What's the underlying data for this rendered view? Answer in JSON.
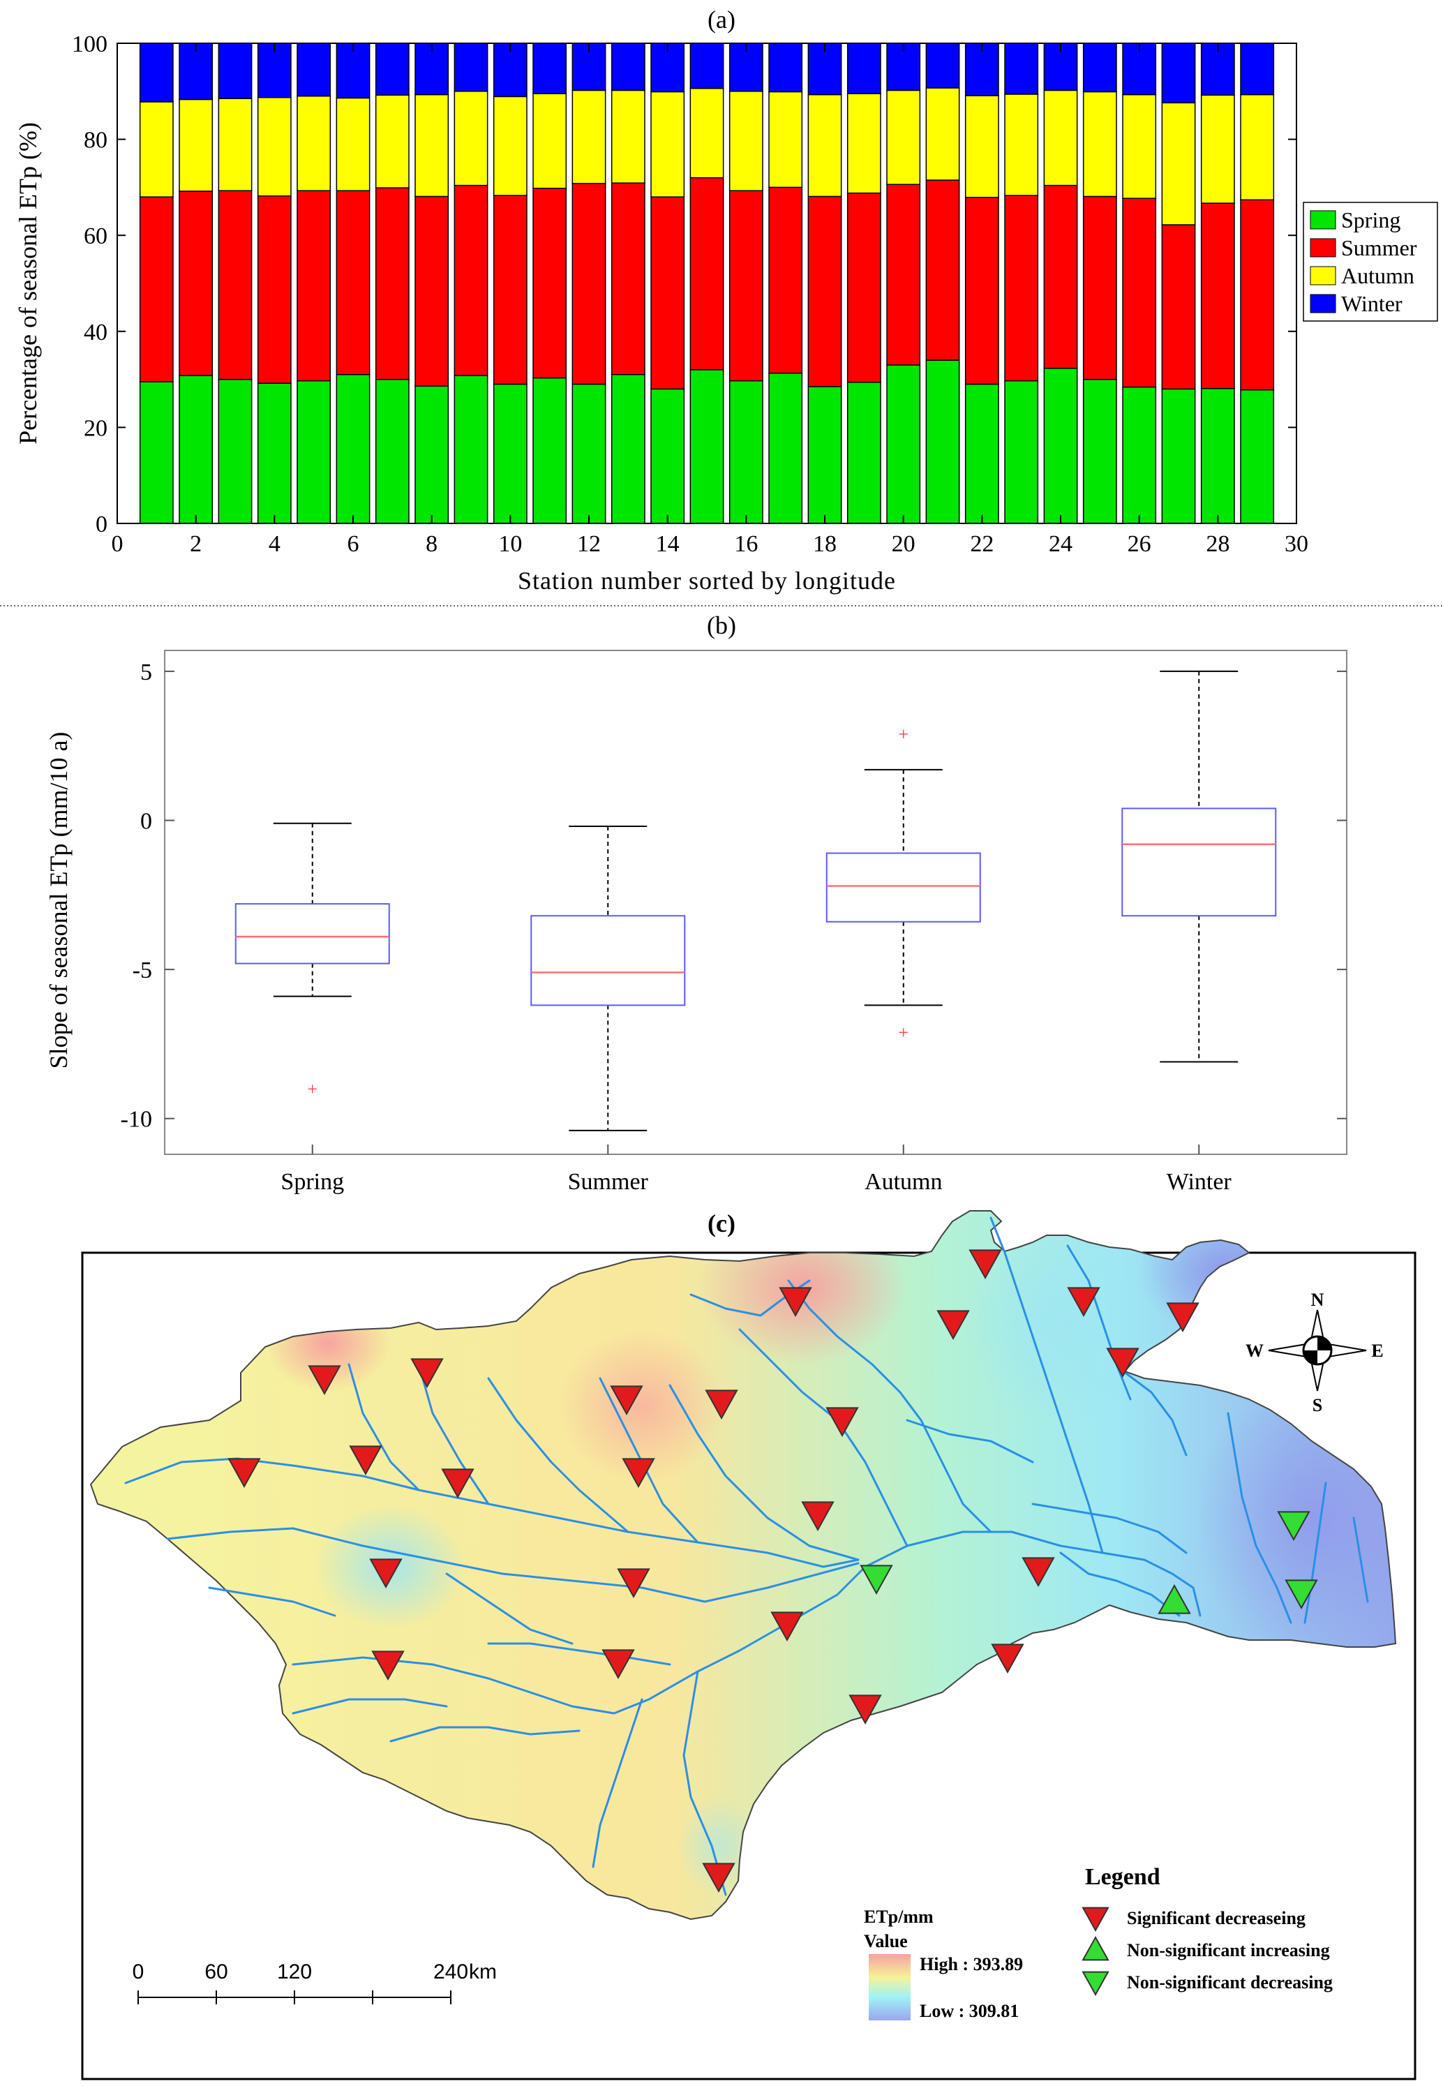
{
  "panel_a": {
    "label": "(a)",
    "chart_data": {
      "type": "bar",
      "stacked": true,
      "title": "(a)",
      "xlabel": "Station number sorted by longitude",
      "ylabel": "Percentage of seasonal ETp (%)",
      "xlim": [
        0,
        30
      ],
      "ylim": [
        0,
        100
      ],
      "xticks": [
        0,
        2,
        4,
        6,
        8,
        10,
        12,
        14,
        16,
        18,
        20,
        22,
        24,
        26,
        28,
        30
      ],
      "yticks": [
        0,
        20,
        40,
        60,
        80,
        100
      ],
      "legend_position": "right",
      "x": [
        1,
        2,
        3,
        4,
        5,
        6,
        7,
        8,
        9,
        10,
        11,
        12,
        13,
        14,
        15,
        16,
        17,
        18,
        19,
        20,
        21,
        22,
        23,
        24,
        25,
        26,
        27,
        28,
        29
      ],
      "series": [
        {
          "name": "Spring",
          "color": "#00e600",
          "values": [
            29.5,
            30.8,
            30.0,
            29.2,
            29.7,
            31.0,
            30.0,
            28.6,
            30.8,
            29.0,
            30.3,
            29.0,
            31.0,
            28.0,
            32.0,
            29.7,
            31.3,
            28.5,
            29.4,
            33.0,
            34.0,
            29.0,
            29.7,
            32.3,
            30.0,
            28.4,
            28.0,
            28.1,
            27.8
          ]
        },
        {
          "name": "Summer",
          "color": "#ff0000",
          "values": [
            38.5,
            38.4,
            39.3,
            39.0,
            39.6,
            38.3,
            39.9,
            39.5,
            39.6,
            39.3,
            39.5,
            41.8,
            39.9,
            40.0,
            40.0,
            39.6,
            38.7,
            39.6,
            39.4,
            37.6,
            37.5,
            38.9,
            38.6,
            38.1,
            38.1,
            39.3,
            34.2,
            38.6,
            39.6
          ]
        },
        {
          "name": "Autumn",
          "color": "#ffff00",
          "values": [
            19.8,
            19.1,
            19.2,
            20.5,
            19.7,
            19.3,
            19.3,
            21.2,
            19.6,
            20.6,
            19.7,
            19.4,
            19.3,
            21.9,
            18.6,
            20.7,
            19.9,
            21.2,
            20.7,
            19.6,
            19.2,
            21.2,
            21.1,
            19.8,
            21.8,
            21.6,
            25.4,
            22.5,
            21.9
          ]
        },
        {
          "name": "Winter",
          "color": "#0000ff",
          "values": [
            12.2,
            11.7,
            11.5,
            11.3,
            11.0,
            11.4,
            10.8,
            10.7,
            10.0,
            11.1,
            10.5,
            9.8,
            9.8,
            10.1,
            9.4,
            10.0,
            10.1,
            10.7,
            10.5,
            9.8,
            9.3,
            10.9,
            10.6,
            9.8,
            10.1,
            10.7,
            12.4,
            10.8,
            10.7
          ]
        }
      ]
    }
  },
  "panel_b": {
    "label": "(b)",
    "chart_data": {
      "type": "box",
      "title": "(b)",
      "ylabel": "Slope of seasonal ETp (mm/10 a)",
      "ylim": [
        -11.2,
        5.7
      ],
      "yticks": [
        -10,
        -5,
        0,
        5
      ],
      "categories": [
        "Spring",
        "Summer",
        "Autumn",
        "Winter"
      ],
      "boxes": [
        {
          "name": "Spring",
          "q1": -4.8,
          "median": -3.9,
          "q3": -2.8,
          "whisker_low": -5.9,
          "whisker_high": -0.1,
          "outliers": [
            -9.0
          ]
        },
        {
          "name": "Summer",
          "q1": -6.2,
          "median": -5.1,
          "q3": -3.2,
          "whisker_low": -10.4,
          "whisker_high": -0.2,
          "outliers": []
        },
        {
          "name": "Autumn",
          "q1": -3.4,
          "median": -2.2,
          "q3": -1.1,
          "whisker_low": -6.2,
          "whisker_high": 1.7,
          "outliers": [
            2.9,
            -7.1
          ]
        },
        {
          "name": "Winter",
          "q1": -3.2,
          "median": -0.8,
          "q3": 0.4,
          "whisker_low": -8.1,
          "whisker_high": 5.0,
          "outliers": []
        }
      ]
    }
  },
  "panel_c": {
    "label": "(c)",
    "compass": {
      "n": "N",
      "s": "S",
      "e": "E",
      "w": "W"
    },
    "legend": {
      "title": "Legend",
      "items": [
        {
          "label": "Significant decreaseing",
          "symbol": "triangle-down",
          "color": "#e31a1c"
        },
        {
          "label": "Non-significant increasing",
          "symbol": "triangle-up",
          "color": "#33dd33"
        },
        {
          "label": "Non-significant decreasing",
          "symbol": "triangle-down",
          "color": "#33dd33"
        }
      ]
    },
    "colorbar": {
      "title": "ETp/mm",
      "subtitle": "Value",
      "high_label": "High : 393.89",
      "low_label": "Low : 309.81"
    },
    "scalebar": {
      "ticks": [
        "0",
        "60",
        "120",
        "240"
      ],
      "unit": "km"
    }
  }
}
